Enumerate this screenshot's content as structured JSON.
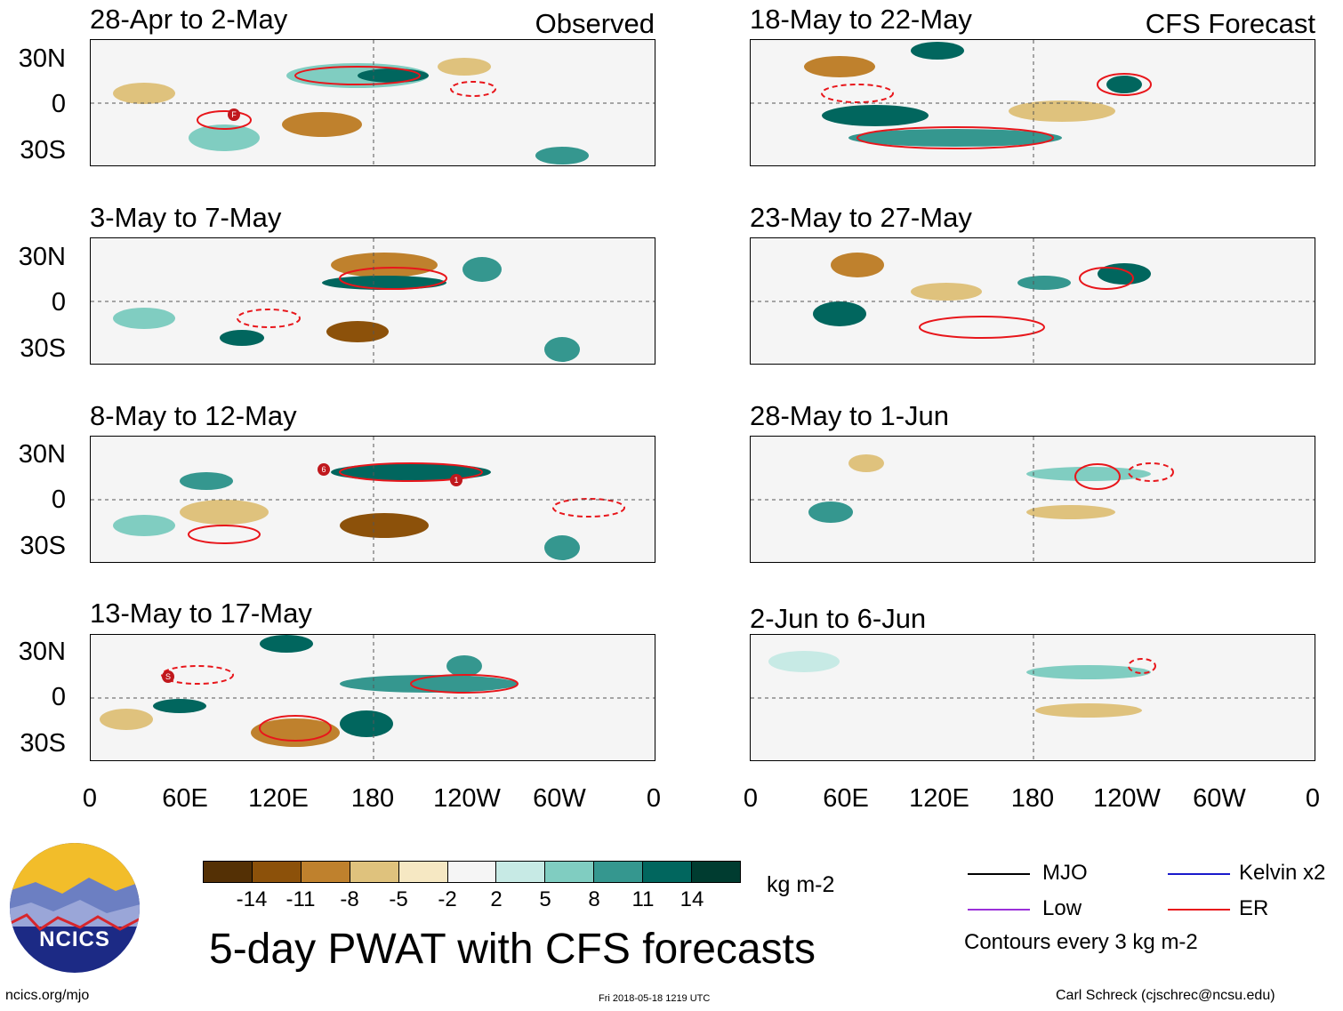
{
  "header": {
    "observed_label": "Observed",
    "forecast_label": "CFS Forecast"
  },
  "panels_left": [
    {
      "title": "28-Apr to 2-May",
      "storms": [
        "F"
      ]
    },
    {
      "title": "3-May to 7-May",
      "storms": []
    },
    {
      "title": "8-May to 12-May",
      "storms": [
        "6",
        "1"
      ]
    },
    {
      "title": "13-May to 17-May",
      "storms": [
        "S"
      ]
    }
  ],
  "panels_right": [
    {
      "title": "18-May to 22-May"
    },
    {
      "title": "23-May to 27-May"
    },
    {
      "title": "28-May to 1-Jun"
    },
    {
      "title": "2-Jun to 6-Jun"
    }
  ],
  "axes": {
    "lat_labels": [
      "30N",
      "0",
      "30S"
    ],
    "lon_labels": [
      "0",
      "60E",
      "120E",
      "180",
      "120W",
      "60W",
      "0"
    ]
  },
  "colorbar": {
    "units": "kg m-2",
    "ticks": [
      "-14",
      "-11",
      "-8",
      "-5",
      "-2",
      "2",
      "5",
      "8",
      "11",
      "14"
    ],
    "colors": [
      "#543005",
      "#8c510a",
      "#bf812d",
      "#dfc27d",
      "#f6e8c3",
      "#f5f5f5",
      "#c7eae5",
      "#80cdc1",
      "#35978f",
      "#01665e",
      "#003c30"
    ]
  },
  "legend": {
    "items": [
      {
        "label": "MJO",
        "color": "#000000"
      },
      {
        "label": "Kelvin x2",
        "color": "#1a1acc"
      },
      {
        "label": "Low",
        "color": "#9b30d9"
      },
      {
        "label": "ER",
        "color": "#e8161b"
      }
    ],
    "contours_note": "Contours every 3 kg m-2"
  },
  "main_title": "5-day PWAT with CFS forecasts",
  "logo_text": "NCICS",
  "footer": {
    "url": "ncics.org/mjo",
    "timestamp": "Fri 2018-05-18 1219 UTC",
    "credit": "Carl Schreck (cjschrec@ncsu.edu)"
  }
}
